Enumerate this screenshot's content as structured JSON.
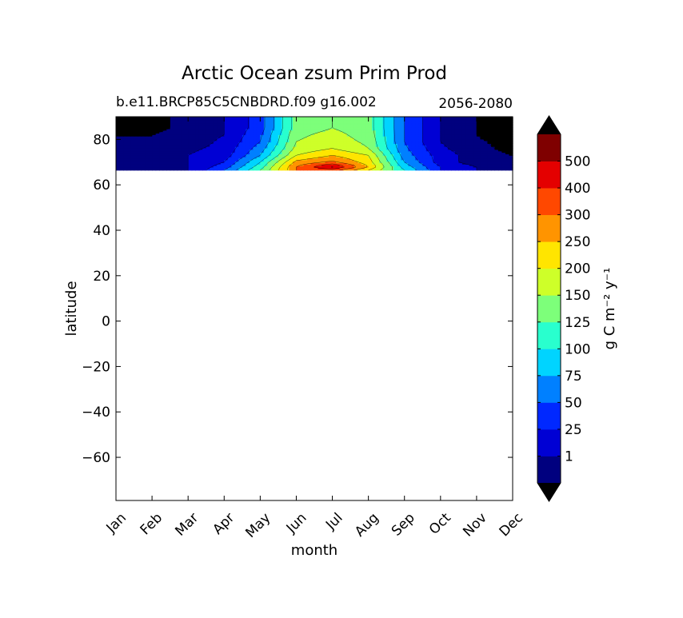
{
  "chart_data": {
    "type": "contour",
    "title": "Arctic Ocean zsum Prim Prod",
    "subtitle_left": "b.e11.BRCP85C5CNBDRD.f09 g16.002",
    "subtitle_right": "2056-2080",
    "xlabel": "month",
    "ylabel": "latitude",
    "x_ticks": [
      "Jan",
      "Feb",
      "Mar",
      "Apr",
      "May",
      "Jun",
      "Jul",
      "Aug",
      "Sep",
      "Oct",
      "Nov",
      "Dec"
    ],
    "y_ticks": [
      80,
      60,
      40,
      20,
      0,
      -20,
      -40,
      -60
    ],
    "y_tick_labels": [
      "80",
      "60",
      "40",
      "20",
      "0",
      "−20",
      "−40",
      "−60"
    ],
    "ylim": [
      -79,
      90
    ],
    "data_lat_range": [
      66.5,
      90
    ],
    "colorbar": {
      "label": "g C m⁻² y⁻¹",
      "levels": [
        "1",
        "25",
        "50",
        "75",
        "100",
        "125",
        "150",
        "200",
        "250",
        "300",
        "400",
        "500"
      ],
      "colors": [
        "#00007f",
        "#0000d4",
        "#0028ff",
        "#0080ff",
        "#00d4ff",
        "#29ffce",
        "#7dff7a",
        "#ceff29",
        "#ffe500",
        "#ff9400",
        "#ff4800",
        "#e40000",
        "#7f0000"
      ],
      "extend": "both",
      "under_color": "#000000",
      "over_color": "#000000"
    },
    "band_levels": [
      -1,
      0,
      1,
      2,
      3,
      4,
      5,
      6,
      7,
      8,
      9,
      10,
      11,
      12
    ],
    "field_lat": [
      66.5,
      68,
      70,
      73,
      76,
      79,
      82,
      85,
      88,
      90
    ],
    "field_month_index": [
      0,
      1,
      2,
      3,
      4,
      5,
      6,
      7,
      8,
      9,
      10,
      11
    ],
    "field": [
      [
        0,
        0,
        1,
        3,
        6,
        10,
        10.5,
        8,
        5,
        2,
        1,
        0
      ],
      [
        0,
        0,
        1,
        2.5,
        5.5,
        10,
        12.3,
        9,
        4.5,
        2,
        1,
        0
      ],
      [
        0,
        0,
        1,
        2,
        5,
        9.3,
        10.2,
        8.5,
        4,
        1.5,
        0.5,
        0
      ],
      [
        0,
        0,
        1,
        1.5,
        4,
        8,
        9,
        8,
        3.5,
        1.5,
        0.5,
        0
      ],
      [
        0,
        0,
        0.8,
        1.3,
        3.5,
        7.3,
        8,
        7,
        3.2,
        1.2,
        0.3,
        -0.3
      ],
      [
        0,
        0,
        0.5,
        1.2,
        3,
        7,
        7.5,
        6.8,
        3,
        1,
        0.2,
        -0.5
      ],
      [
        0,
        0,
        0.5,
        1,
        2.8,
        6.8,
        7.3,
        6.6,
        3,
        1,
        0,
        -0.8
      ],
      [
        -0.5,
        -0.3,
        0.3,
        1,
        2.5,
        6.5,
        7,
        6.5,
        3,
        1,
        0,
        -1
      ],
      [
        -1,
        -0.3,
        0.3,
        1,
        2.5,
        6.5,
        7,
        6.5,
        3,
        1,
        0,
        -1
      ],
      [
        -1,
        -0.3,
        0.3,
        1,
        2.5,
        6.5,
        7,
        6.5,
        3,
        1,
        0,
        -1
      ]
    ]
  }
}
